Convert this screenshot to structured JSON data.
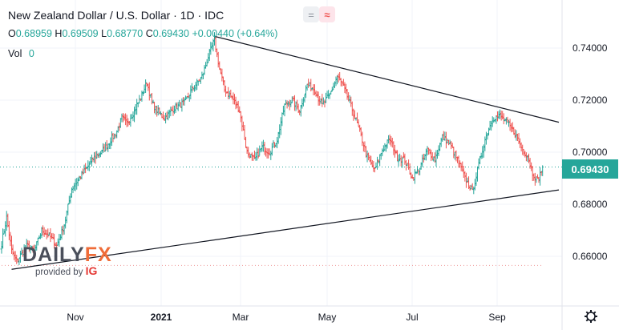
{
  "header": {
    "title": "New Zealand Dollar / U.S. Dollar · 1D · IDC",
    "ohlc": [
      {
        "key": "O",
        "value": "0.68959"
      },
      {
        "key": "H",
        "value": "0.69509"
      },
      {
        "key": "L",
        "value": "0.68770"
      },
      {
        "key": "C",
        "value": "0.69430"
      }
    ],
    "change": "+0.00440 (+0.64%)",
    "vol_label": "Vol",
    "vol_value": "0",
    "icons": [
      "equals-icon",
      "wave-icon"
    ]
  },
  "price_tag": "0.69430",
  "watermark": {
    "logo_main": "DAILY",
    "logo_accent": "FX",
    "sub": "provided by",
    "sub_brand": "IG"
  },
  "colors": {
    "up": "#26a69a",
    "down": "#ef5350",
    "trendline": "#131722",
    "grid": "#f0f3fa",
    "price_line": "#26a69a"
  },
  "chart_data": {
    "type": "candlestick",
    "x_ticks": [
      "Nov",
      "2021",
      "Mar",
      "May",
      "Jul",
      "Sep"
    ],
    "y_ticks": [
      "0.74000",
      "0.72000",
      "0.70000",
      "0.68000",
      "0.66000"
    ],
    "ylim": [
      0.646,
      0.751
    ],
    "last_price": 0.6943,
    "low_marker": 0.6565,
    "close_path": [
      [
        0,
        0.665
      ],
      [
        4,
        0.675
      ],
      [
        8,
        0.662
      ],
      [
        12,
        0.658
      ],
      [
        16,
        0.661
      ],
      [
        20,
        0.664
      ],
      [
        26,
        0.662
      ],
      [
        32,
        0.67
      ],
      [
        38,
        0.668
      ],
      [
        44,
        0.664
      ],
      [
        50,
        0.672
      ],
      [
        56,
        0.686
      ],
      [
        62,
        0.69
      ],
      [
        68,
        0.694
      ],
      [
        74,
        0.698
      ],
      [
        80,
        0.7
      ],
      [
        86,
        0.704
      ],
      [
        92,
        0.708
      ],
      [
        96,
        0.713
      ],
      [
        100,
        0.711
      ],
      [
        106,
        0.716
      ],
      [
        112,
        0.722
      ],
      [
        116,
        0.727
      ],
      [
        120,
        0.719
      ],
      [
        124,
        0.716
      ],
      [
        130,
        0.713
      ],
      [
        138,
        0.717
      ],
      [
        146,
        0.719
      ],
      [
        152,
        0.724
      ],
      [
        160,
        0.729
      ],
      [
        166,
        0.738
      ],
      [
        170,
        0.743
      ],
      [
        174,
        0.732
      ],
      [
        178,
        0.724
      ],
      [
        184,
        0.721
      ],
      [
        190,
        0.716
      ],
      [
        196,
        0.7
      ],
      [
        202,
        0.697
      ],
      [
        208,
        0.702
      ],
      [
        214,
        0.7
      ],
      [
        220,
        0.705
      ],
      [
        226,
        0.718
      ],
      [
        232,
        0.72
      ],
      [
        238,
        0.716
      ],
      [
        244,
        0.726
      ],
      [
        250,
        0.724
      ],
      [
        256,
        0.718
      ],
      [
        262,
        0.722
      ],
      [
        268,
        0.729
      ],
      [
        272,
        0.726
      ],
      [
        278,
        0.719
      ],
      [
        286,
        0.708
      ],
      [
        292,
        0.698
      ],
      [
        298,
        0.693
      ],
      [
        304,
        0.701
      ],
      [
        310,
        0.705
      ],
      [
        316,
        0.698
      ],
      [
        322,
        0.697
      ],
      [
        328,
        0.69
      ],
      [
        334,
        0.694
      ],
      [
        340,
        0.701
      ],
      [
        346,
        0.697
      ],
      [
        352,
        0.706
      ],
      [
        358,
        0.703
      ],
      [
        364,
        0.697
      ],
      [
        370,
        0.69
      ],
      [
        376,
        0.685
      ],
      [
        380,
        0.693
      ],
      [
        386,
        0.705
      ],
      [
        392,
        0.713
      ],
      [
        398,
        0.714
      ],
      [
        404,
        0.711
      ],
      [
        410,
        0.707
      ],
      [
        416,
        0.701
      ],
      [
        420,
        0.699
      ],
      [
        424,
        0.692
      ],
      [
        428,
        0.689
      ],
      [
        432,
        0.694
      ]
    ],
    "trendlines": [
      {
        "name": "resistance",
        "x": [
          170,
          445
        ],
        "y": [
          0.7445,
          0.7115
        ]
      },
      {
        "name": "support",
        "x": [
          8,
          445
        ],
        "y": [
          0.655,
          0.6855
        ]
      }
    ]
  }
}
